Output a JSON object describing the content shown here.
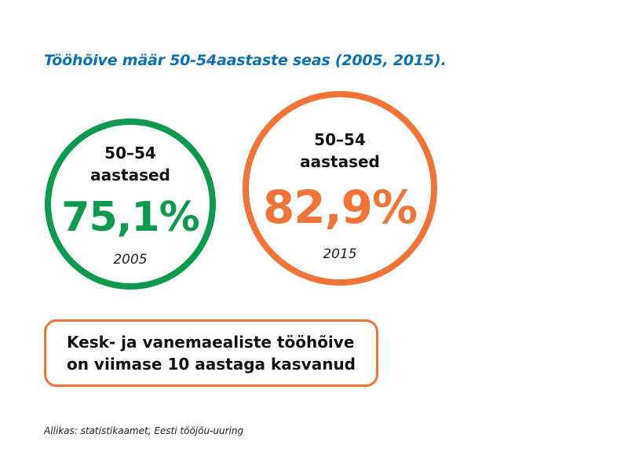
{
  "title": "Tööhõive määr 50-54aastaste seas (2005, 2015).",
  "stats": [
    {
      "label_line1": "50–54",
      "label_line2": "aastased",
      "value": "75,1%",
      "year": "2005",
      "color": "#0d9a4f"
    },
    {
      "label_line1": "50–54",
      "label_line2": "aastased",
      "value": "82,9%",
      "year": "2015",
      "color": "#f07337"
    }
  ],
  "note": {
    "line1": "Kesk- ja vanemaealiste tööhõive",
    "line2": "on viimase 10 aastaga kasvanud"
  },
  "source": "Allikas: statistikaamet, Eesti tööjõu-uuring",
  "colors": {
    "title": "#0a6fb5",
    "green": "#0d9a4f",
    "orange": "#f07337"
  }
}
